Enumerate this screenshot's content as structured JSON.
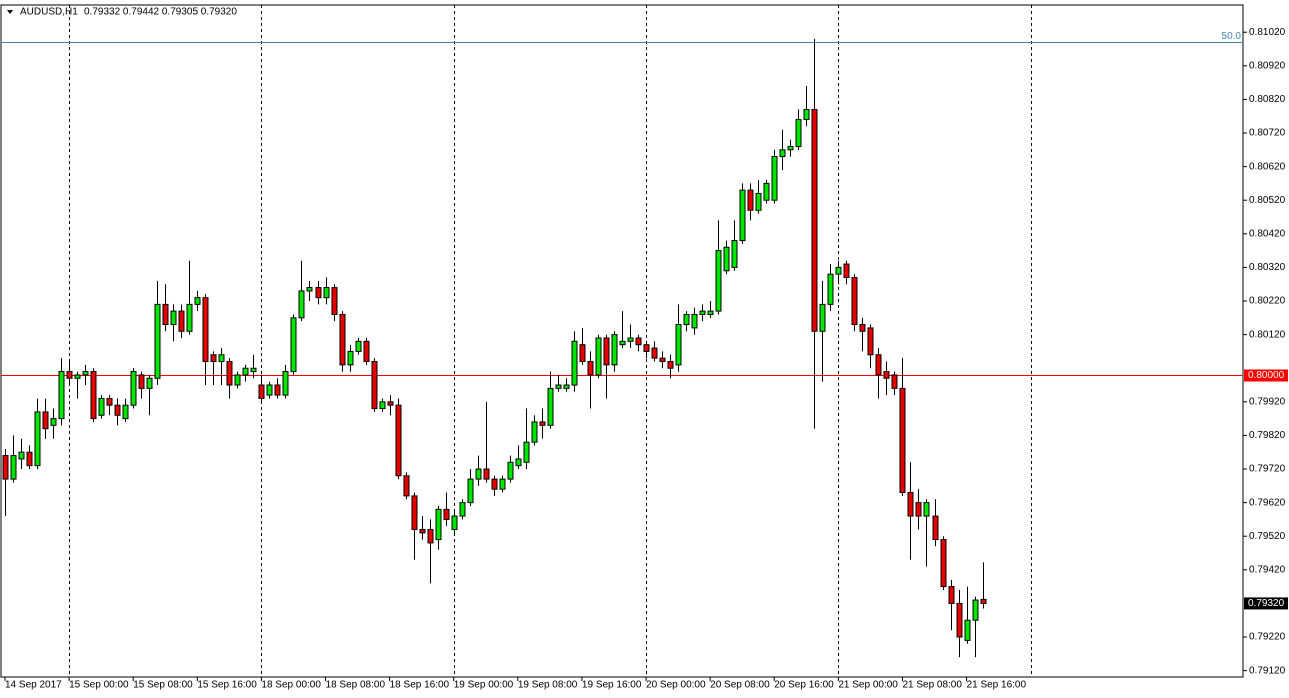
{
  "chart_data": {
    "type": "candlestick",
    "title": "AUDUSD,H1",
    "subtitle": "0.79332 0.79442 0.79305 0.79320",
    "up_color": "#00e600",
    "down_color": "#e60000",
    "open": [
      0.7976,
      0.7969,
      0.7975,
      0.7977,
      0.7973,
      0.7989,
      0.7985,
      0.7987,
      0.8001,
      0.7999,
      0.8,
      0.8001,
      0.7988,
      0.7993,
      0.7991,
      0.7987,
      0.7991,
      0.8,
      0.7996,
      0.7999,
      0.8021,
      0.8015,
      0.8019,
      0.8013,
      0.8021,
      0.8023,
      0.8006,
      0.8004,
      0.8004,
      0.7997,
      0.8,
      0.8001,
      0.7997,
      0.7994,
      0.7997,
      0.7994,
      0.8001,
      0.8017,
      0.8025,
      0.8026,
      0.8023,
      0.8026,
      0.8018,
      0.8003,
      0.8007,
      0.801,
      0.8004,
      0.799,
      0.7992,
      0.7991,
      0.797,
      0.7964,
      0.7954,
      0.7954,
      0.7951,
      0.796,
      0.7954,
      0.7958,
      0.7962,
      0.7969,
      0.7972,
      0.7969,
      0.7966,
      0.7969,
      0.7973,
      0.7974,
      0.798,
      0.7986,
      0.7985,
      0.7996,
      0.7996,
      0.7997,
      0.8009,
      0.8004,
      0.8,
      0.8011,
      0.8003,
      0.8009,
      0.801,
      0.8011,
      0.8009,
      0.8008,
      0.8005,
      0.8004,
      0.8003,
      0.8015,
      0.8014,
      0.8018,
      0.8018,
      0.8019,
      0.8031,
      0.8032,
      0.804,
      0.8055,
      0.8049,
      0.8052,
      0.8052,
      0.8065,
      0.8067,
      0.8068,
      0.8076,
      0.8079,
      0.8013,
      0.8021,
      0.803,
      0.8033,
      0.8029,
      0.8015,
      0.8014,
      0.8006,
      0.8001,
      0.8,
      0.7996,
      0.7965,
      0.7962,
      0.7958,
      0.7958,
      0.7951,
      0.7937,
      0.7932,
      0.7921,
      0.7927,
      0.79332
    ],
    "high": [
      0.7978,
      0.7982,
      0.7981,
      0.7979,
      0.7993,
      0.7993,
      0.799,
      0.8005,
      0.8004,
      0.8001,
      0.8003,
      0.8002,
      0.7994,
      0.7994,
      0.7993,
      0.7993,
      0.8002,
      0.8001,
      0.8,
      0.8028,
      0.8027,
      0.8021,
      0.8021,
      0.8034,
      0.8025,
      0.8024,
      0.8007,
      0.8008,
      0.8005,
      0.8001,
      0.8003,
      0.8006,
      0.8,
      0.7998,
      0.7999,
      0.8003,
      0.8018,
      0.8034,
      0.8028,
      0.8028,
      0.8029,
      0.8027,
      0.8019,
      0.8009,
      0.8011,
      0.8011,
      0.8005,
      0.7993,
      0.7994,
      0.7993,
      0.7971,
      0.7965,
      0.7958,
      0.7957,
      0.7961,
      0.7965,
      0.796,
      0.7963,
      0.7972,
      0.7976,
      0.7992,
      0.797,
      0.797,
      0.7976,
      0.7979,
      0.799,
      0.7988,
      0.799,
      0.8001,
      0.8,
      0.7999,
      0.8013,
      0.8014,
      0.8007,
      0.8012,
      0.8012,
      0.8013,
      0.8019,
      0.8015,
      0.8012,
      0.801,
      0.801,
      0.8007,
      0.8006,
      0.8021,
      0.8019,
      0.802,
      0.8021,
      0.8022,
      0.8046,
      0.804,
      0.8046,
      0.8057,
      0.8057,
      0.8058,
      0.8058,
      0.8067,
      0.8073,
      0.807,
      0.8079,
      0.8086,
      0.81,
      0.8028,
      0.8033,
      0.8034,
      0.8034,
      0.803,
      0.8017,
      0.8015,
      0.8008,
      0.8004,
      0.8001,
      0.8005,
      0.7974,
      0.7966,
      0.7963,
      0.7963,
      0.7952,
      0.7939,
      0.7936,
      0.7937,
      0.7934,
      0.79442
    ],
    "low": [
      0.7958,
      0.7968,
      0.7972,
      0.7972,
      0.7972,
      0.7981,
      0.7981,
      0.7985,
      0.7997,
      0.7993,
      0.7997,
      0.7986,
      0.7987,
      0.7988,
      0.7985,
      0.7986,
      0.799,
      0.7993,
      0.7988,
      0.7997,
      0.8013,
      0.801,
      0.8011,
      0.8012,
      0.8019,
      0.7997,
      0.7997,
      0.7997,
      0.7993,
      0.7996,
      0.7998,
      0.7999,
      0.7992,
      0.7993,
      0.7993,
      0.7993,
      0.8,
      0.8016,
      0.8022,
      0.8021,
      0.8021,
      0.8016,
      0.8001,
      0.8001,
      0.8006,
      0.8003,
      0.7989,
      0.7989,
      0.7988,
      0.7969,
      0.7963,
      0.7945,
      0.7951,
      0.7938,
      0.7948,
      0.7955,
      0.7953,
      0.7957,
      0.7961,
      0.7967,
      0.7968,
      0.7964,
      0.7965,
      0.7968,
      0.7972,
      0.7972,
      0.7979,
      0.7981,
      0.7984,
      0.7995,
      0.7995,
      0.7995,
      0.8003,
      0.799,
      0.7999,
      0.7993,
      0.8001,
      0.8008,
      0.8008,
      0.8007,
      0.8005,
      0.8004,
      0.8002,
      0.7999,
      0.8001,
      0.8013,
      0.8012,
      0.8016,
      0.8017,
      0.8018,
      0.803,
      0.8031,
      0.8039,
      0.8046,
      0.8048,
      0.8051,
      0.8051,
      0.8061,
      0.8065,
      0.8067,
      0.8074,
      0.7984,
      0.7998,
      0.8019,
      0.8027,
      0.8027,
      0.8013,
      0.8007,
      0.8002,
      0.7993,
      0.7994,
      0.7994,
      0.7964,
      0.7945,
      0.7954,
      0.7943,
      0.7949,
      0.7936,
      0.7924,
      0.7916,
      0.792,
      0.7916,
      0.79305
    ],
    "close": [
      0.7969,
      0.7976,
      0.7977,
      0.7973,
      0.7989,
      0.7984,
      0.7987,
      0.8001,
      0.7999,
      0.8,
      0.8001,
      0.7987,
      0.7993,
      0.7991,
      0.7988,
      0.7991,
      0.8001,
      0.7996,
      0.7999,
      0.8021,
      0.8015,
      0.8019,
      0.8013,
      0.8021,
      0.8023,
      0.8004,
      0.8004,
      0.8006,
      0.7997,
      0.8,
      0.8002,
      0.8002,
      0.7993,
      0.7997,
      0.7994,
      0.8001,
      0.8017,
      0.8025,
      0.8026,
      0.8023,
      0.8026,
      0.8018,
      0.8003,
      0.8007,
      0.801,
      0.8004,
      0.799,
      0.7992,
      0.7991,
      0.797,
      0.7964,
      0.7954,
      0.7953,
      0.795,
      0.796,
      0.7957,
      0.7958,
      0.7962,
      0.7969,
      0.7972,
      0.7969,
      0.7966,
      0.7969,
      0.7974,
      0.7975,
      0.798,
      0.7986,
      0.7985,
      0.7996,
      0.7997,
      0.7997,
      0.801,
      0.8004,
      0.8,
      0.8011,
      0.8003,
      0.8012,
      0.801,
      0.8011,
      0.8009,
      0.8007,
      0.8005,
      0.8004,
      0.8002,
      0.8015,
      0.8018,
      0.8018,
      0.8019,
      0.8019,
      0.8037,
      0.8038,
      0.804,
      0.8055,
      0.8049,
      0.8054,
      0.8057,
      0.8065,
      0.8067,
      0.8068,
      0.8076,
      0.8079,
      0.8013,
      0.8021,
      0.803,
      0.8032,
      0.8029,
      0.8015,
      0.8013,
      0.8006,
      0.8,
      0.7999,
      0.7996,
      0.7965,
      0.7958,
      0.7958,
      0.7962,
      0.7951,
      0.7937,
      0.7932,
      0.7922,
      0.7927,
      0.7933,
      0.7932
    ],
    "xlim": [
      -0.5,
      154.5
    ],
    "ylim": [
      0.79101,
      0.81101
    ],
    "yticks": [
      {
        "value": 0.8102,
        "label": "0.81020"
      },
      {
        "value": 0.8092,
        "label": "0.80920"
      },
      {
        "value": 0.8082,
        "label": "0.80820"
      },
      {
        "value": 0.8072,
        "label": "0.80720"
      },
      {
        "value": 0.8062,
        "label": "0.80620"
      },
      {
        "value": 0.8052,
        "label": "0.80520"
      },
      {
        "value": 0.8042,
        "label": "0.80420"
      },
      {
        "value": 0.8032,
        "label": "0.80320"
      },
      {
        "value": 0.8022,
        "label": "0.80220"
      },
      {
        "value": 0.8012,
        "label": "0.80120"
      },
      {
        "value": 0.7992,
        "label": "0.79920"
      },
      {
        "value": 0.7982,
        "label": "0.79820"
      },
      {
        "value": 0.7972,
        "label": "0.79720"
      },
      {
        "value": 0.7962,
        "label": "0.79620"
      },
      {
        "value": 0.7952,
        "label": "0.79520"
      },
      {
        "value": 0.7942,
        "label": "0.79420"
      },
      {
        "value": 0.7922,
        "label": "0.79220"
      },
      {
        "value": 0.7912,
        "label": "0.79120"
      }
    ],
    "xticks": [
      {
        "value": 0,
        "label": "14 Sep 2017"
      },
      {
        "value": 8,
        "label": "15 Sep 00:00"
      },
      {
        "value": 16,
        "label": "15 Sep 08:00"
      },
      {
        "value": 24,
        "label": "15 Sep 16:00"
      },
      {
        "value": 32,
        "label": "18 Sep 00:00"
      },
      {
        "value": 40,
        "label": "18 Sep 08:00"
      },
      {
        "value": 48,
        "label": "18 Sep 16:00"
      },
      {
        "value": 56,
        "label": "19 Sep 00:00"
      },
      {
        "value": 64,
        "label": "19 Sep 08:00"
      },
      {
        "value": 72,
        "label": "19 Sep 16:00"
      },
      {
        "value": 80,
        "label": "20 Sep 00:00"
      },
      {
        "value": 88,
        "label": "20 Sep 08:00"
      },
      {
        "value": 96,
        "label": "20 Sep 16:00"
      },
      {
        "value": 104,
        "label": "21 Sep 00:00"
      },
      {
        "value": 112,
        "label": "21 Sep 08:00"
      },
      {
        "value": 120,
        "label": "21 Sep 16:00"
      }
    ],
    "vgrid": [
      8,
      32,
      56,
      80,
      104,
      128
    ],
    "levels": [
      {
        "value": 0.8099,
        "label": "50.0",
        "color": "#4682b4"
      },
      {
        "value": 0.8,
        "label": "0.80000",
        "color": "#ff0000"
      }
    ],
    "last_price": {
      "value": 0.7932,
      "label": "0.79320"
    }
  }
}
